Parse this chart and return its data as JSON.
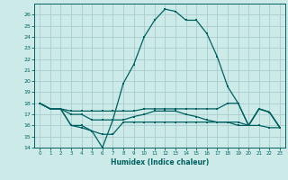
{
  "title": "",
  "xlabel": "Humidex (Indice chaleur)",
  "xlim": [
    -0.5,
    23.5
  ],
  "ylim": [
    14,
    27
  ],
  "yticks": [
    14,
    15,
    16,
    17,
    18,
    19,
    20,
    21,
    22,
    23,
    24,
    25,
    26
  ],
  "xticks": [
    0,
    1,
    2,
    3,
    4,
    5,
    6,
    7,
    8,
    9,
    10,
    11,
    12,
    13,
    14,
    15,
    16,
    17,
    18,
    19,
    20,
    21,
    22,
    23
  ],
  "bg_color": "#cceae8",
  "grid_color": "#aacccc",
  "line_color": "#006060",
  "series1_x": [
    0,
    1,
    2,
    3,
    4,
    5,
    6,
    7,
    8,
    9,
    10,
    11,
    12,
    13,
    14,
    15,
    16,
    17,
    18,
    19,
    20,
    21,
    22,
    23
  ],
  "series1_y": [
    18.0,
    17.5,
    17.5,
    16.0,
    15.8,
    15.5,
    14.0,
    16.5,
    19.8,
    21.5,
    24.0,
    25.5,
    26.5,
    26.3,
    25.5,
    25.5,
    24.3,
    22.2,
    19.5,
    18.0,
    16.0,
    17.5,
    17.2,
    15.8
  ],
  "series2_x": [
    0,
    1,
    2,
    3,
    4,
    5,
    6,
    7,
    8,
    9,
    10,
    11,
    12,
    13,
    14,
    15,
    16,
    17,
    18,
    19,
    20,
    21,
    22,
    23
  ],
  "series2_y": [
    18.0,
    17.5,
    17.5,
    17.3,
    17.3,
    17.3,
    17.3,
    17.3,
    17.3,
    17.3,
    17.5,
    17.5,
    17.5,
    17.5,
    17.5,
    17.5,
    17.5,
    17.5,
    18.0,
    18.0,
    16.0,
    17.5,
    17.2,
    15.8
  ],
  "series3_x": [
    0,
    1,
    2,
    3,
    4,
    5,
    6,
    7,
    8,
    9,
    10,
    11,
    12,
    13,
    14,
    15,
    16,
    17,
    18,
    19,
    20,
    21,
    22,
    23
  ],
  "series3_y": [
    18.0,
    17.5,
    17.5,
    16.0,
    16.0,
    15.5,
    15.2,
    15.2,
    16.3,
    16.3,
    16.3,
    16.3,
    16.3,
    16.3,
    16.3,
    16.3,
    16.3,
    16.3,
    16.3,
    16.3,
    16.0,
    16.0,
    15.8,
    15.8
  ],
  "series4_x": [
    0,
    1,
    2,
    3,
    4,
    5,
    6,
    7,
    8,
    9,
    10,
    11,
    12,
    13,
    14,
    15,
    16,
    17,
    18,
    19,
    20,
    21,
    22,
    23
  ],
  "series4_y": [
    18.0,
    17.5,
    17.5,
    17.0,
    17.0,
    16.5,
    16.5,
    16.5,
    16.5,
    16.8,
    17.0,
    17.3,
    17.3,
    17.3,
    17.0,
    16.8,
    16.5,
    16.3,
    16.3,
    16.0,
    16.0,
    17.5,
    17.2,
    15.8
  ]
}
